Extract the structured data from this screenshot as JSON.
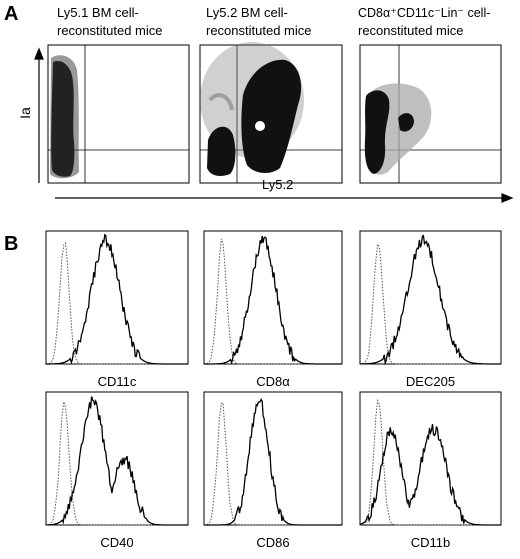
{
  "figure": {
    "panel_a": {
      "label": "A",
      "plots": [
        {
          "title_lines": [
            "Ly5.1 BM cell-",
            "reconstituted mice"
          ]
        },
        {
          "title_lines": [
            "Ly5.2 BM cell-",
            "reconstituted mice"
          ]
        },
        {
          "title_lines": [
            "CD8α⁺CD11c⁻Lin⁻ cell-",
            "reconstituted mice"
          ]
        }
      ],
      "y_axis_label": "Ia",
      "x_axis_label": "Ly5.2"
    },
    "panel_b": {
      "label": "B",
      "histograms": [
        {
          "marker": "CD11c"
        },
        {
          "marker": "CD8α"
        },
        {
          "marker": "DEC205"
        },
        {
          "marker": "CD40"
        },
        {
          "marker": "CD86"
        },
        {
          "marker": "CD11b"
        }
      ]
    }
  }
}
